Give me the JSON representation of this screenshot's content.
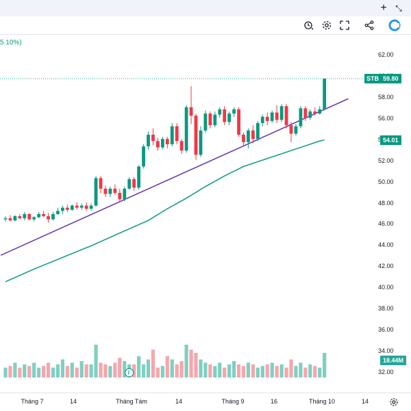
{
  "toolbar": {
    "plus_icon": "plus-icon",
    "restore_icon": "restore-icon",
    "close_icon": "close-icon",
    "alert_icon": "alert-icon",
    "settings_icon": "gear-icon",
    "fullscreen_icon": "fullscreen-icon",
    "share_icon": "share-icon",
    "logo_icon": "logo-icon"
  },
  "header": {
    "change_text": "5.10%)"
  },
  "colors": {
    "up": "#089981",
    "down": "#f23645",
    "vol_up": "#7fcfc2",
    "vol_down": "#f7a5ac",
    "trendline": "#673ab7",
    "ma": "#089981"
  },
  "price_tags": {
    "symbol": "STB",
    "last_price": "59.80",
    "ma_value": "54.01",
    "volume": "18.44M"
  },
  "axis": {
    "y_ticks": [
      "62.00",
      "60.00",
      "58.00",
      "56.00",
      "54.00",
      "52.00",
      "50.00",
      "48.00",
      "46.00",
      "44.00",
      "42.00",
      "40.00",
      "38.00",
      "36.00",
      "34.00",
      "32.00"
    ],
    "x_ticks": [
      "Tháng 7",
      "14",
      "Tháng Tám",
      "14",
      "Tháng 9",
      "16",
      "Tháng 10",
      "14"
    ]
  },
  "chart_data": {
    "type": "candlestick",
    "symbol": "STB",
    "ylim": [
      31.5,
      62.5
    ],
    "candles": [
      [
        46.5,
        46.8,
        46.3,
        46.6
      ],
      [
        46.6,
        46.9,
        46.3,
        46.4
      ],
      [
        46.4,
        46.9,
        46.3,
        46.8
      ],
      [
        46.8,
        47.0,
        46.5,
        46.6
      ],
      [
        46.6,
        47.2,
        46.4,
        47.0
      ],
      [
        47.0,
        47.1,
        46.4,
        46.5
      ],
      [
        46.5,
        46.8,
        46.3,
        46.7
      ],
      [
        46.7,
        47.2,
        46.6,
        47.0
      ],
      [
        47.0,
        47.3,
        46.7,
        46.8
      ],
      [
        46.8,
        47.1,
        46.2,
        46.5
      ],
      [
        46.5,
        47.2,
        46.4,
        47.0
      ],
      [
        47.0,
        47.6,
        46.9,
        47.3
      ],
      [
        47.3,
        47.8,
        47.0,
        47.6
      ],
      [
        47.6,
        47.9,
        47.2,
        47.4
      ],
      [
        47.4,
        47.9,
        47.3,
        47.8
      ],
      [
        47.8,
        48.1,
        47.4,
        47.6
      ],
      [
        47.6,
        48.0,
        47.4,
        47.8
      ],
      [
        47.8,
        48.1,
        47.3,
        47.5
      ],
      [
        47.5,
        48.0,
        47.3,
        47.8
      ],
      [
        47.8,
        50.6,
        47.7,
        50.4
      ],
      [
        50.4,
        50.6,
        49.0,
        49.4
      ],
      [
        49.4,
        49.7,
        48.6,
        48.9
      ],
      [
        48.9,
        49.6,
        48.6,
        49.4
      ],
      [
        49.4,
        49.8,
        48.8,
        49.0
      ],
      [
        49.0,
        49.4,
        48.1,
        48.4
      ],
      [
        48.4,
        49.6,
        48.2,
        49.4
      ],
      [
        49.4,
        50.5,
        49.3,
        50.3
      ],
      [
        50.3,
        50.5,
        49.2,
        49.5
      ],
      [
        49.5,
        51.6,
        49.3,
        51.5
      ],
      [
        51.5,
        53.6,
        51.3,
        53.4
      ],
      [
        53.4,
        54.8,
        53.1,
        54.5
      ],
      [
        54.5,
        55.1,
        53.5,
        53.9
      ],
      [
        53.9,
        54.2,
        53.0,
        53.3
      ],
      [
        53.3,
        54.3,
        53.1,
        54.1
      ],
      [
        54.1,
        54.3,
        53.2,
        53.6
      ],
      [
        53.6,
        55.6,
        53.4,
        55.3
      ],
      [
        55.3,
        55.6,
        53.6,
        53.9
      ],
      [
        53.9,
        54.1,
        52.7,
        53.0
      ],
      [
        53.0,
        57.3,
        52.8,
        57.1
      ],
      [
        57.1,
        59.1,
        55.5,
        56.3
      ],
      [
        56.3,
        56.5,
        52.1,
        52.6
      ],
      [
        52.6,
        55.3,
        52.4,
        54.9
      ],
      [
        54.9,
        56.8,
        54.7,
        56.5
      ],
      [
        56.5,
        56.7,
        55.1,
        55.4
      ],
      [
        55.4,
        56.7,
        55.2,
        56.4
      ],
      [
        56.4,
        57.1,
        56.1,
        56.9
      ],
      [
        56.9,
        57.2,
        55.4,
        55.7
      ],
      [
        55.7,
        56.7,
        55.4,
        56.5
      ],
      [
        56.5,
        57.1,
        56.2,
        56.9
      ],
      [
        56.9,
        57.1,
        54.3,
        54.5
      ],
      [
        54.5,
        54.7,
        53.5,
        53.8
      ],
      [
        53.8,
        55.1,
        53.2,
        54.9
      ],
      [
        54.9,
        55.4,
        53.7,
        54.1
      ],
      [
        54.1,
        55.8,
        53.9,
        55.6
      ],
      [
        55.6,
        56.4,
        55.3,
        56.2
      ],
      [
        56.2,
        56.6,
        55.4,
        55.8
      ],
      [
        55.8,
        56.8,
        55.6,
        56.6
      ],
      [
        56.6,
        57.3,
        55.6,
        55.9
      ],
      [
        55.9,
        57.4,
        55.7,
        57.2
      ],
      [
        57.2,
        57.4,
        55.1,
        55.4
      ],
      [
        55.4,
        55.7,
        53.8,
        54.6
      ],
      [
        54.6,
        55.5,
        54.4,
        55.3
      ],
      [
        55.3,
        57.2,
        55.1,
        57.0
      ],
      [
        57.0,
        57.2,
        55.8,
        56.1
      ],
      [
        56.1,
        56.9,
        55.9,
        56.7
      ],
      [
        56.7,
        57.1,
        56.3,
        56.5
      ],
      [
        56.5,
        57.2,
        56.4,
        56.9
      ],
      [
        56.9,
        59.8,
        56.8,
        59.8
      ]
    ],
    "volumes": [
      0.3,
      0.35,
      0.45,
      0.3,
      0.4,
      0.35,
      0.45,
      0.3,
      0.35,
      0.45,
      0.3,
      0.4,
      0.55,
      0.35,
      0.45,
      0.3,
      0.5,
      0.4,
      0.4,
      1.0,
      0.45,
      0.4,
      0.35,
      0.45,
      0.6,
      0.5,
      0.4,
      0.4,
      0.65,
      0.4,
      0.55,
      0.85,
      0.3,
      0.35,
      0.65,
      0.55,
      0.4,
      0.5,
      1.0,
      0.85,
      0.75,
      0.55,
      0.45,
      0.4,
      0.35,
      0.45,
      0.3,
      0.4,
      0.5,
      0.4,
      0.35,
      0.45,
      0.4,
      0.3,
      0.35,
      0.4,
      0.45,
      0.35,
      0.4,
      0.3,
      0.55,
      0.35,
      0.45,
      0.3,
      0.4,
      0.35,
      0.3,
      0.75
    ],
    "ma_line": [
      [
        0,
        40.6
      ],
      [
        6,
        41.8
      ],
      [
        12,
        42.9
      ],
      [
        18,
        44.0
      ],
      [
        24,
        45.2
      ],
      [
        30,
        46.4
      ],
      [
        34,
        47.5
      ],
      [
        38,
        48.5
      ],
      [
        42,
        49.6
      ],
      [
        46,
        50.6
      ],
      [
        50,
        51.5
      ],
      [
        54,
        52.1
      ],
      [
        58,
        52.7
      ],
      [
        62,
        53.3
      ],
      [
        66,
        53.9
      ],
      [
        67,
        54.01
      ]
    ],
    "trendline": [
      [
        -1,
        43.1
      ],
      [
        72,
        57.9
      ]
    ]
  }
}
